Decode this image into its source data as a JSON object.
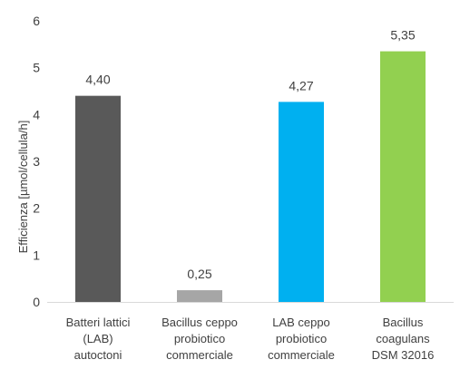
{
  "chart_data": {
    "type": "bar",
    "title": "",
    "xlabel": "",
    "ylabel": "Efficienza [µmol/cellula/h]",
    "ylim": [
      0,
      6
    ],
    "yticks": [
      "0",
      "1",
      "2",
      "3",
      "4",
      "5",
      "6"
    ],
    "grid": false,
    "categories": [
      [
        "Batteri lattici",
        "(LAB)",
        "autoctoni"
      ],
      [
        "Bacillus ceppo",
        "probiotico",
        "commerciale"
      ],
      [
        "LAB ceppo",
        "probiotico",
        "commerciale"
      ],
      [
        "Bacillus",
        "coagulans",
        "DSM 32016"
      ]
    ],
    "values": [
      4.4,
      0.25,
      4.27,
      5.35
    ],
    "data_labels": [
      "4,40",
      "0,25",
      "4,27",
      "5,35"
    ],
    "colors": [
      "#595959",
      "#a6a6a6",
      "#00b0f0",
      "#92d050"
    ]
  }
}
